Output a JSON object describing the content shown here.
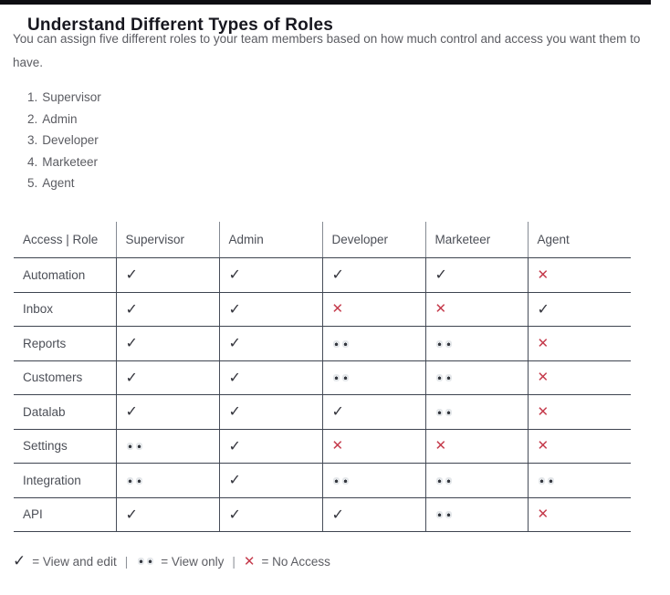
{
  "header": {
    "title": "Understand Different Types of Roles"
  },
  "intro": {
    "line1": "You can assign five different roles to your team members based on how much control and access you want them to",
    "line2": "have."
  },
  "roles_list": [
    {
      "num": "1.",
      "label": "Supervisor"
    },
    {
      "num": "2.",
      "label": "Admin"
    },
    {
      "num": "3.",
      "label": "Developer"
    },
    {
      "num": "4.",
      "label": "Marketeer"
    },
    {
      "num": "5.",
      "label": "Agent"
    }
  ],
  "table": {
    "columns": [
      "Access | Role",
      "Supervisor",
      "Admin",
      "Developer",
      "Marketeer",
      "Agent"
    ],
    "rows": [
      {
        "label": "Automation",
        "cells": [
          "edit",
          "edit",
          "edit",
          "edit",
          "none"
        ]
      },
      {
        "label": "Inbox",
        "cells": [
          "edit",
          "edit",
          "none",
          "none",
          "edit"
        ]
      },
      {
        "label": "Reports",
        "cells": [
          "edit",
          "edit",
          "view",
          "view",
          "none"
        ]
      },
      {
        "label": "Customers",
        "cells": [
          "edit",
          "edit",
          "view",
          "view",
          "none"
        ]
      },
      {
        "label": "Datalab",
        "cells": [
          "edit",
          "edit",
          "edit",
          "view",
          "none"
        ]
      },
      {
        "label": "Settings",
        "cells": [
          "view",
          "edit",
          "none",
          "none",
          "none"
        ]
      },
      {
        "label": "Integration",
        "cells": [
          "view",
          "edit",
          "view",
          "view",
          "view"
        ]
      },
      {
        "label": "API",
        "cells": [
          "edit",
          "edit",
          "edit",
          "view",
          "none"
        ]
      }
    ]
  },
  "legend": {
    "edit_text": "= View and edit",
    "view_text": "= View only",
    "none_text": "= No Access",
    "separator": "|"
  },
  "symbols": {
    "check": "✓",
    "cross": "✕",
    "view_dots": "••"
  },
  "colors": {
    "check": "#33343c",
    "cross": "#c53b4c",
    "border_dark": "#3e4450",
    "text_gray": "#5b5c62",
    "topbar": "#0d0d12"
  }
}
